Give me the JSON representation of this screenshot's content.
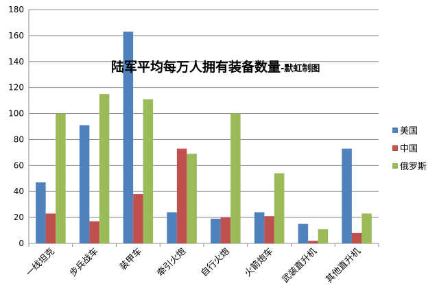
{
  "chart_data": {
    "type": "bar",
    "title": "陆军平均每万人拥有装备数量",
    "subtitle": "-默虹制图",
    "categories": [
      "一线坦克",
      "步兵战车",
      "装甲车",
      "牵引火炮",
      "自行火炮",
      "火箭炮车",
      "武装直升机",
      "其他直升机"
    ],
    "series": [
      {
        "name": "美国",
        "color": "#4f81bd",
        "values": [
          47,
          91,
          163,
          24,
          19,
          24,
          15,
          73
        ]
      },
      {
        "name": "中国",
        "color": "#c0504d",
        "values": [
          23,
          17,
          38,
          73,
          20,
          21,
          2,
          8
        ]
      },
      {
        "name": "俄罗斯",
        "color": "#9bbb59",
        "values": [
          100,
          115,
          111,
          69,
          100,
          54,
          11,
          23
        ]
      }
    ],
    "ylim": [
      0,
      180
    ],
    "yticks": [
      "0",
      "20",
      "40",
      "60",
      "80",
      "100",
      "120",
      "140",
      "160",
      "180"
    ],
    "grid": true,
    "legend_position": "right"
  }
}
